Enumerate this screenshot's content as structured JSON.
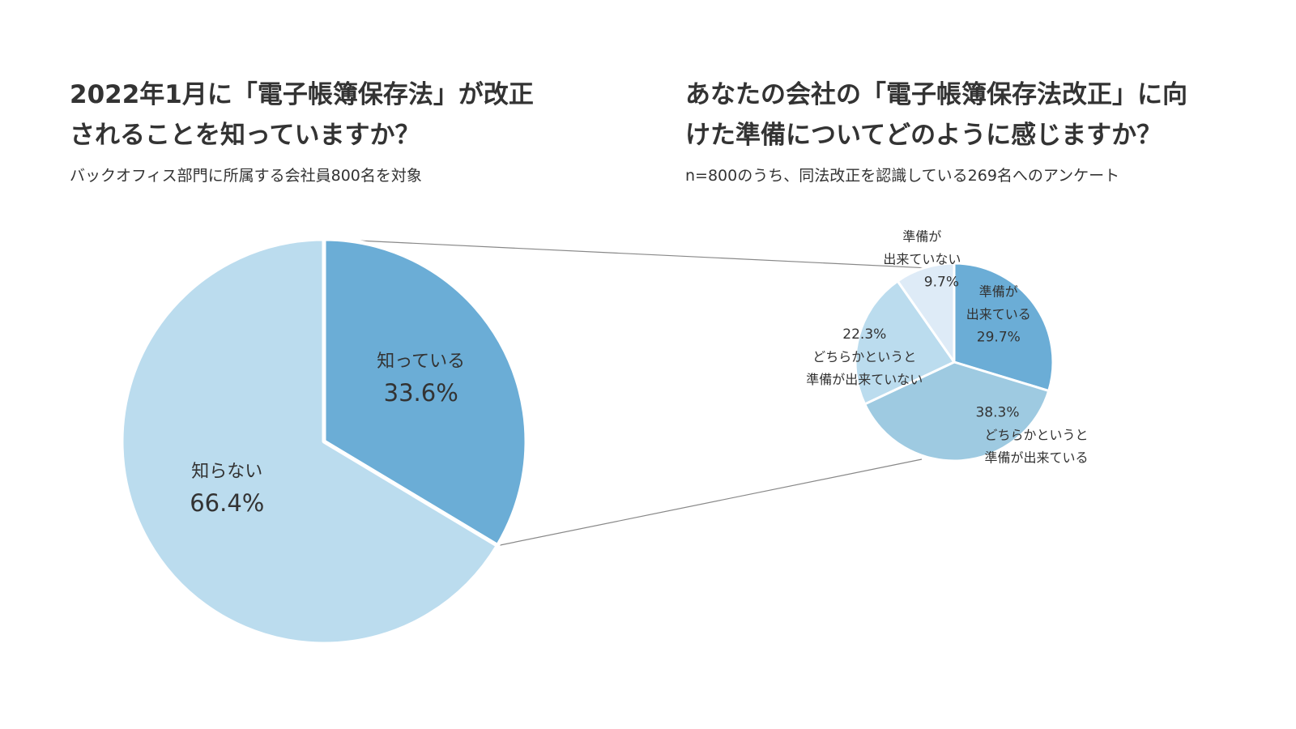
{
  "left": {
    "title_line1": "2022年1月に「電子帳簿保存法」が改正",
    "title_line2": "されることを知っていますか？",
    "subtitle": "バックオフィス部門に所属する会社員800名を対象"
  },
  "right": {
    "title_line1": "あなたの会社の「電子帳簿保存法改正」に向",
    "title_line2": "けた準備についてどのように感じますか？",
    "subtitle": "n=800のうち、同法改正を認識している269名へのアンケート"
  },
  "colors": {
    "dark_blue": "#6badd6",
    "mid_blue": "#9ecae1",
    "light_blue": "#bbdcee",
    "pale_blue": "#deebf7",
    "connector": "#888888"
  },
  "chart_data": [
    {
      "type": "pie",
      "slices": [
        {
          "label": "知っている",
          "value": 33.6,
          "value_label": "33.6%"
        },
        {
          "label": "知らない",
          "value": 66.4,
          "value_label": "66.4%"
        }
      ]
    },
    {
      "type": "pie",
      "slices": [
        {
          "label_lines": [
            "準備が",
            "出来ている"
          ],
          "value": 29.7,
          "value_label": "29.7%"
        },
        {
          "label_lines": [
            "どちらかというと",
            "準備が出来ている"
          ],
          "value": 38.3,
          "value_label": "38.3%"
        },
        {
          "label_lines": [
            "どちらかというと",
            "準備が出来ていない"
          ],
          "value": 22.3,
          "value_label": "22.3%"
        },
        {
          "label_lines": [
            "準備が",
            "出来ていない"
          ],
          "value": 9.7,
          "value_label": "9.7%"
        }
      ]
    }
  ]
}
